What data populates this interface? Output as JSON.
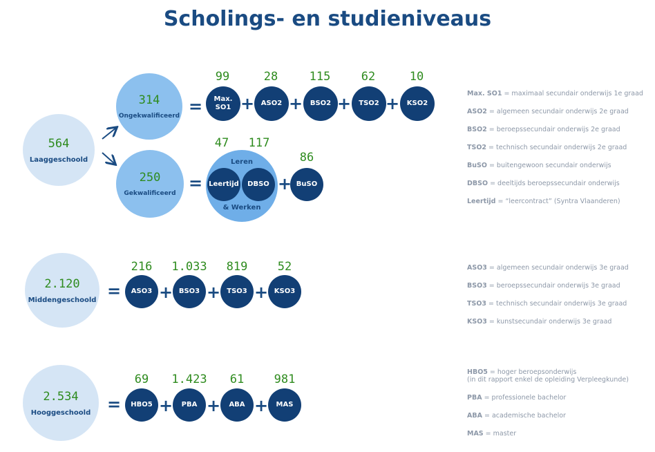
{
  "title": "Scholings- en studieniveaus",
  "rows": {
    "laag": {
      "total": "564",
      "label": "Laaggeschoold",
      "ongekw": {
        "value": "314",
        "label": "Ongekwalificeerd"
      },
      "gekw": {
        "value": "250",
        "label": "Gekwalificeerd"
      },
      "ongekw_items": [
        {
          "value": "99",
          "label1": "Max.",
          "label2": "SO1"
        },
        {
          "value": "28",
          "label": "ASO2"
        },
        {
          "value": "115",
          "label": "BSO2"
        },
        {
          "value": "62",
          "label": "TSO2"
        },
        {
          "value": "10",
          "label": "KSO2"
        }
      ],
      "ll": {
        "top": "Leren",
        "bottom": "& Werken"
      },
      "gekw_items": [
        {
          "value": "47",
          "label": "Leertijd"
        },
        {
          "value": "117",
          "label": "DBSO"
        },
        {
          "value": "86",
          "label": "BuSO"
        }
      ]
    },
    "midden": {
      "total": "2.120",
      "label": "Middengeschoold",
      "items": [
        {
          "value": "216",
          "label": "ASO3"
        },
        {
          "value": "1.033",
          "label": "BSO3"
        },
        {
          "value": "819",
          "label": "TSO3"
        },
        {
          "value": "52",
          "label": "KSO3"
        }
      ]
    },
    "hoog": {
      "total": "2.534",
      "label": "Hooggeschoold",
      "items": [
        {
          "value": "69",
          "label": "HBO5"
        },
        {
          "value": "1.423",
          "label": "PBA"
        },
        {
          "value": "61",
          "label": "ABA"
        },
        {
          "value": "981",
          "label": "MAS"
        }
      ]
    }
  },
  "symbols": {
    "eq": "=",
    "plus": "+"
  },
  "legend": {
    "laag": [
      {
        "abbr": "Max. SO1",
        "rest": " = maximaal secundair onderwijs 1e graad"
      },
      {
        "abbr": "ASO2",
        "rest": " = algemeen secundair onderwijs 2e graad"
      },
      {
        "abbr": "BSO2",
        "rest": " = beroepssecundair onderwijs 2e graad"
      },
      {
        "abbr": "TSO2",
        "rest": " = technisch secundair onderwijs 2e graad"
      },
      {
        "abbr": "BuSO",
        "rest": " = buitengewoon secundair onderwijs"
      },
      {
        "abbr": "DBSO",
        "rest": " = deeltijds beroepssecundair onderwijs"
      },
      {
        "abbr": "Leertijd",
        "rest": " = “leercontract” (Syntra Vlaanderen)"
      }
    ],
    "midden": [
      {
        "abbr": "ASO3",
        "rest": " = algemeen secundair onderwijs 3e graad"
      },
      {
        "abbr": "BSO3",
        "rest": " = beroepssecundair onderwijs 3e graad"
      },
      {
        "abbr": "TSO3",
        "rest": " = technisch secundair onderwijs 3e graad"
      },
      {
        "abbr": "KSO3",
        "rest": " = kunstsecundair onderwijs 3e graad"
      }
    ],
    "hoog": [
      {
        "abbr": "HBO5",
        "rest": " = hoger beroepsonderwijs",
        "extra": "(in dit rapport enkel de opleiding Verpleegkunde)"
      },
      {
        "abbr": "PBA",
        "rest": " = professionele bachelor"
      },
      {
        "abbr": "ABA",
        "rest": " = academische bachelor"
      },
      {
        "abbr": "MAS",
        "rest": " = master"
      }
    ]
  },
  "colors": {
    "light": "#d5e5f5",
    "mid": "#8cc0ee",
    "dark": "#123f75",
    "number": "#2e8b1e",
    "title": "#1a4b82",
    "legend": "#8d98a8"
  }
}
